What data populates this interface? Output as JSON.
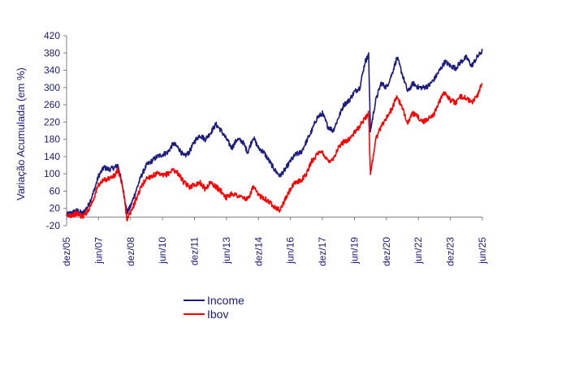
{
  "chart_data": {
    "type": "line",
    "title": "",
    "xlabel": "",
    "ylabel": "Variação Acumulada (em %)",
    "ylim": [
      -20,
      420
    ],
    "yticks": [
      -20,
      20,
      60,
      100,
      140,
      180,
      220,
      260,
      300,
      340,
      380,
      420
    ],
    "xlim": [
      "2005-12",
      "2025-06"
    ],
    "xticks": [
      "dez/05",
      "jun/07",
      "dez/08",
      "jun/10",
      "dez/11",
      "jun/13",
      "dez/14",
      "jun/16",
      "dez/17",
      "jun/19",
      "dez/20",
      "jun/22",
      "dez/23",
      "jun/25"
    ],
    "grid": false,
    "legend_position": "bottom",
    "series": [
      {
        "name": "Income",
        "color": "#1c1c80",
        "x": [
          "2005-12",
          "2006-03",
          "2006-06",
          "2006-09",
          "2006-12",
          "2007-03",
          "2007-06",
          "2007-09",
          "2007-12",
          "2008-03",
          "2008-05",
          "2008-08",
          "2008-10",
          "2008-12",
          "2009-03",
          "2009-06",
          "2009-09",
          "2009-12",
          "2010-03",
          "2010-06",
          "2010-09",
          "2010-12",
          "2011-03",
          "2011-06",
          "2011-09",
          "2011-12",
          "2012-03",
          "2012-06",
          "2012-09",
          "2012-12",
          "2013-03",
          "2013-06",
          "2013-09",
          "2013-12",
          "2014-03",
          "2014-06",
          "2014-09",
          "2014-12",
          "2015-03",
          "2015-06",
          "2015-09",
          "2015-12",
          "2016-03",
          "2016-06",
          "2016-09",
          "2016-12",
          "2017-03",
          "2017-06",
          "2017-09",
          "2017-12",
          "2018-03",
          "2018-06",
          "2018-09",
          "2018-12",
          "2019-03",
          "2019-06",
          "2019-09",
          "2019-12",
          "2020-02",
          "2020-03",
          "2020-06",
          "2020-09",
          "2020-12",
          "2021-03",
          "2021-06",
          "2021-09",
          "2021-12",
          "2022-03",
          "2022-06",
          "2022-09",
          "2022-12",
          "2023-03",
          "2023-06",
          "2023-09",
          "2023-12",
          "2024-03",
          "2024-06",
          "2024-09",
          "2024-12",
          "2025-03",
          "2025-06"
        ],
        "values": [
          5,
          10,
          15,
          8,
          25,
          55,
          95,
          115,
          110,
          115,
          120,
          60,
          10,
          25,
          60,
          95,
          120,
          130,
          140,
          145,
          150,
          170,
          160,
          140,
          150,
          175,
          190,
          180,
          195,
          215,
          200,
          180,
          160,
          180,
          175,
          150,
          185,
          160,
          150,
          130,
          110,
          95,
          110,
          130,
          145,
          150,
          175,
          200,
          230,
          240,
          210,
          200,
          230,
          260,
          270,
          290,
          300,
          360,
          375,
          200,
          270,
          310,
          300,
          330,
          370,
          330,
          290,
          310,
          300,
          300,
          305,
          320,
          340,
          360,
          350,
          345,
          360,
          370,
          350,
          370,
          385
        ]
      },
      {
        "name": "Ibov",
        "color": "#ff0000",
        "x": [
          "2005-12",
          "2006-03",
          "2006-06",
          "2006-09",
          "2006-12",
          "2007-03",
          "2007-06",
          "2007-09",
          "2007-12",
          "2008-03",
          "2008-05",
          "2008-08",
          "2008-10",
          "2008-12",
          "2009-03",
          "2009-06",
          "2009-09",
          "2009-12",
          "2010-03",
          "2010-06",
          "2010-09",
          "2010-12",
          "2011-03",
          "2011-06",
          "2011-09",
          "2011-12",
          "2012-03",
          "2012-06",
          "2012-09",
          "2012-12",
          "2013-03",
          "2013-06",
          "2013-09",
          "2013-12",
          "2014-03",
          "2014-06",
          "2014-09",
          "2014-12",
          "2015-03",
          "2015-06",
          "2015-09",
          "2015-12",
          "2016-03",
          "2016-06",
          "2016-09",
          "2016-12",
          "2017-03",
          "2017-06",
          "2017-09",
          "2017-12",
          "2018-03",
          "2018-06",
          "2018-09",
          "2018-12",
          "2019-03",
          "2019-06",
          "2019-09",
          "2019-12",
          "2020-02",
          "2020-03",
          "2020-06",
          "2020-09",
          "2020-12",
          "2021-03",
          "2021-06",
          "2021-09",
          "2021-12",
          "2022-03",
          "2022-06",
          "2022-09",
          "2022-12",
          "2023-03",
          "2023-06",
          "2023-09",
          "2023-12",
          "2024-03",
          "2024-06",
          "2024-09",
          "2024-12",
          "2025-03",
          "2025-06"
        ],
        "values": [
          2,
          5,
          8,
          0,
          15,
          40,
          75,
          85,
          90,
          95,
          110,
          60,
          -5,
          10,
          40,
          70,
          90,
          95,
          100,
          95,
          100,
          110,
          100,
          80,
          70,
          75,
          80,
          65,
          80,
          70,
          60,
          45,
          55,
          50,
          45,
          40,
          70,
          50,
          45,
          35,
          25,
          15,
          40,
          65,
          80,
          85,
          100,
          130,
          145,
          150,
          130,
          135,
          160,
          175,
          180,
          195,
          210,
          230,
          240,
          100,
          180,
          210,
          230,
          250,
          280,
          250,
          220,
          240,
          230,
          220,
          230,
          240,
          270,
          290,
          270,
          265,
          280,
          275,
          265,
          280,
          310
        ]
      }
    ]
  }
}
